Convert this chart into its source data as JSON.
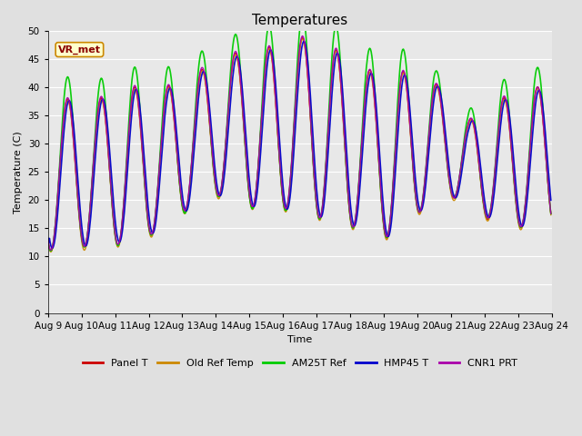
{
  "title": "Temperatures",
  "xlabel": "Time",
  "ylabel": "Temperature (C)",
  "ylim": [
    0,
    50
  ],
  "yticks": [
    0,
    5,
    10,
    15,
    20,
    25,
    30,
    35,
    40,
    45,
    50
  ],
  "date_labels": [
    "Aug 9",
    "Aug 10",
    "Aug 11",
    "Aug 12",
    "Aug 13",
    "Aug 14",
    "Aug 15",
    "Aug 16",
    "Aug 17",
    "Aug 18",
    "Aug 19",
    "Aug 20",
    "Aug 21",
    "Aug 22",
    "Aug 23",
    "Aug 24"
  ],
  "series_labels": [
    "Panel T",
    "Old Ref Temp",
    "AM25T Ref",
    "HMP45 T",
    "CNR1 PRT"
  ],
  "series_colors": [
    "#cc0000",
    "#cc8800",
    "#00cc00",
    "#0000cc",
    "#aa00aa"
  ],
  "line_widths": [
    1.0,
    1.0,
    1.2,
    1.2,
    1.0
  ],
  "annotation_text": "VR_met",
  "bg_color": "#e8e8e8",
  "fig_bg": "#e0e0e0",
  "title_fontsize": 11,
  "axis_fontsize": 8,
  "tick_fontsize": 7.5
}
